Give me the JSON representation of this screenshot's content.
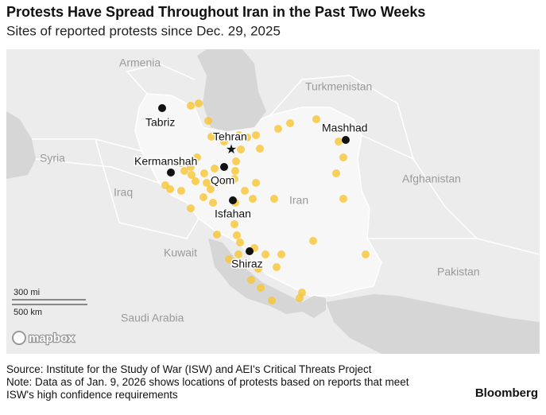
{
  "header": {
    "title": "Protests Have Spread Throughout Iran in the Past Two Weeks",
    "subtitle": "Sites of reported protests since Dec. 29, 2025"
  },
  "map": {
    "countries": [
      "Armenia",
      "Turkmenistan",
      "Syria",
      "Iraq",
      "Iran",
      "Afghanistan",
      "Kuwait",
      "Pakistan",
      "Saudi Arabia"
    ],
    "cities": [
      "Tabriz",
      "Tehran",
      "Kermanshah",
      "Qom",
      "Mashhad",
      "Isfahan",
      "Shiraz"
    ],
    "scale": [
      "300 mi",
      "500 km"
    ],
    "attribution": "mapbox"
  },
  "footer": {
    "source": "Source: Institute for the Study of War (ISW) and AEI's Critical Threats Project",
    "note": "Note: Data as of Jan. 9, 2026 shows locations of protests based on reports that meet ISW's high confidence requirements",
    "brand": "Bloomberg"
  }
}
